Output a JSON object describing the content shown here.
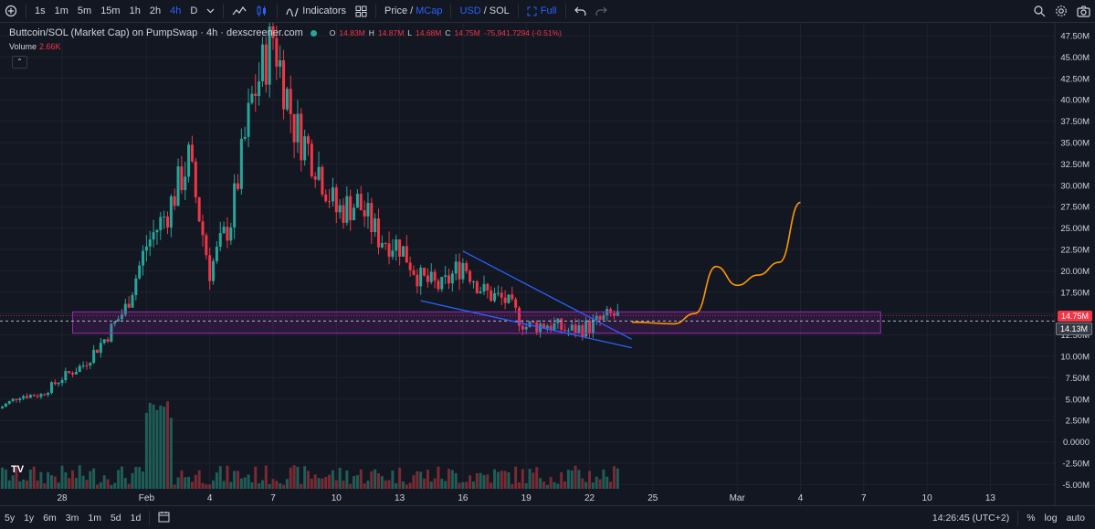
{
  "toolbar": {
    "intervals": [
      "1s",
      "1m",
      "5m",
      "15m",
      "1h",
      "2h",
      "4h",
      "D"
    ],
    "active_interval": "4h",
    "indicators_label": "Indicators",
    "price_label": "Price",
    "mcap_label": "MCap",
    "usd_label": "USD",
    "sol_label": "SOL",
    "full_label": "Full"
  },
  "legend": {
    "title": "Buttcoin/SOL (Market Cap) on PumpSwap · 4h · dexscreener.com",
    "o_label": "O",
    "o": "14.83M",
    "h_label": "H",
    "h": "14.87M",
    "l_label": "L",
    "l": "14.68M",
    "c_label": "C",
    "c": "14.75M",
    "change": "-75,941.7294 (-0.51%)",
    "volume_label": "Volume",
    "volume_value": "2.66K"
  },
  "price_tags": {
    "current": "14.75M",
    "line": "14.13M"
  },
  "bottom": {
    "ranges": [
      "5y",
      "1y",
      "6m",
      "3m",
      "1m",
      "5d",
      "1d"
    ],
    "time": "14:26:45 (UTC+2)",
    "percent": "%",
    "log": "log",
    "auto": "auto"
  },
  "colors": {
    "up": "#26a69a",
    "down": "#f23645",
    "box": "#9c27b0",
    "trend": "#2962ff",
    "projection": "#ff9800"
  },
  "chart_data": {
    "type": "candlestick",
    "title": "Buttcoin/SOL (Market Cap) on PumpSwap · 4h · dexscreener.com",
    "y_unit": "M",
    "ylim": [
      -5,
      48.5
    ],
    "y_ticks": [
      "47.50M",
      "45.00M",
      "42.50M",
      "40.00M",
      "37.50M",
      "35.00M",
      "32.50M",
      "30.00M",
      "27.50M",
      "25.00M",
      "22.50M",
      "20.00M",
      "17.50M",
      "15.00M",
      "12.50M",
      "10.00M",
      "7.50M",
      "5.00M",
      "2.50M",
      "0.0000",
      "-2.50M",
      "-5.00M"
    ],
    "x_ticks": [
      "28",
      "Feb",
      "4",
      "7",
      "10",
      "13",
      "16",
      "19",
      "22",
      "25",
      "Mar",
      "4",
      "7",
      "10",
      "13"
    ],
    "series": [
      {
        "x": "Jan 26",
        "y": 3.9
      },
      {
        "x": "Jan 27",
        "y": 5.4
      },
      {
        "x": "Jan 28",
        "y": 5.5
      },
      {
        "x": "Jan 29",
        "y": 7.5
      },
      {
        "x": "Jan 30",
        "y": 9.0
      },
      {
        "x": "Jan 31",
        "y": 12.0
      },
      {
        "x": "Feb 1",
        "y": 15.6
      },
      {
        "x": "Feb 2",
        "y": 23.0
      },
      {
        "x": "Feb 3",
        "y": 27.0
      },
      {
        "x": "Feb 4",
        "y": 33.0
      },
      {
        "x": "Feb 5",
        "y": 20.0
      },
      {
        "x": "Feb 6",
        "y": 26.0
      },
      {
        "x": "Feb 7",
        "y": 40.0
      },
      {
        "x": "Feb 8",
        "y": 47.5
      },
      {
        "x": "Feb 9",
        "y": 37.0
      },
      {
        "x": "Feb 10",
        "y": 33.0
      },
      {
        "x": "Feb 11",
        "y": 27.0
      },
      {
        "x": "Feb 12",
        "y": 28.0
      },
      {
        "x": "Feb 13",
        "y": 24.0
      },
      {
        "x": "Feb 14",
        "y": 23.0
      },
      {
        "x": "Feb 15",
        "y": 19.0
      },
      {
        "x": "Feb 16",
        "y": 18.0
      },
      {
        "x": "Feb 17",
        "y": 21.0
      },
      {
        "x": "Feb 18",
        "y": 17.5
      },
      {
        "x": "Feb 19",
        "y": 16.5
      },
      {
        "x": "Feb 20",
        "y": 13.5
      },
      {
        "x": "Feb 21",
        "y": 13.8
      },
      {
        "x": "Feb 22",
        "y": 13.0
      },
      {
        "x": "Feb 23",
        "y": 13.5
      },
      {
        "x": "Feb 24",
        "y": 14.75
      }
    ],
    "annotations": {
      "support_zone": [
        12.7,
        15.2
      ],
      "trend_upper": [
        [
          "Feb 16",
          22.3
        ],
        [
          "Feb 24",
          12.0
        ]
      ],
      "trend_lower": [
        [
          "Feb 14",
          16.5
        ],
        [
          "Feb 24",
          11.0
        ]
      ],
      "projection": [
        [
          "Feb 24",
          14.0
        ],
        [
          "Feb 26",
          13.8
        ],
        [
          "Feb 27",
          15.0
        ],
        [
          "Feb 28",
          20.5
        ],
        [
          "Mar 1",
          18.3
        ],
        [
          "Mar 2",
          19.5
        ],
        [
          "Mar 3",
          21.0
        ],
        [
          "Mar 4",
          28.0
        ]
      ]
    }
  }
}
